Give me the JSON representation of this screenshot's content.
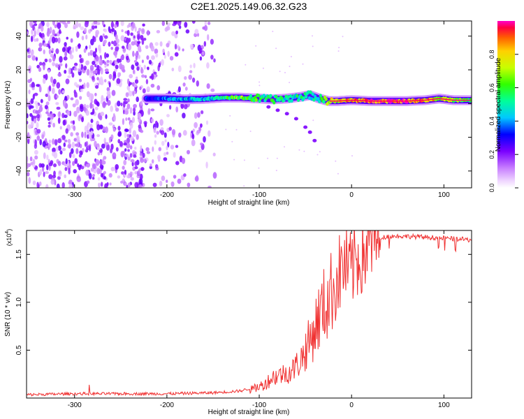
{
  "title": "C2E1.2025.149.06.32.G23",
  "chart_data": [
    {
      "type": "heatmap",
      "name": "spectrogram",
      "xlabel": "Height of straight line (km)",
      "ylabel": "Frequency (Hz)",
      "xlim": [
        -352,
        130
      ],
      "ylim": [
        -50,
        49
      ],
      "xticks": [
        -300,
        -200,
        -100,
        0,
        100
      ],
      "yticks": [
        -40,
        -20,
        0,
        20,
        40
      ],
      "colorbar": {
        "label": "Normalized spectral amplitude",
        "range": [
          0,
          1
        ],
        "ticks": [
          "0.0",
          "0.2",
          "0.4",
          "0.6",
          "0.8"
        ],
        "tick_values": [
          0.0,
          0.2,
          0.4,
          0.6,
          0.8
        ]
      },
      "ridge": {
        "x": [
          -222,
          -200,
          -180,
          -160,
          -140,
          -120,
          -100,
          -85,
          -70,
          -55,
          -45,
          -35,
          -25,
          -15,
          0,
          20,
          40,
          60,
          80,
          95,
          110,
          130
        ],
        "freq": [
          3,
          3,
          2.5,
          2.8,
          3.5,
          3.5,
          3,
          2.5,
          3,
          4,
          5,
          3,
          1.5,
          1.5,
          2,
          1.5,
          1.5,
          1.5,
          2,
          3,
          2,
          2
        ],
        "amp": [
          0.35,
          0.4,
          0.45,
          0.45,
          0.55,
          0.7,
          0.6,
          0.6,
          0.5,
          0.55,
          0.5,
          0.5,
          0.85,
          0.8,
          0.9,
          0.95,
          1.0,
          0.98,
          0.9,
          0.8,
          0.7,
          0.6
        ]
      },
      "secondary_trace": {
        "x": [
          -90,
          -80,
          -70,
          -60,
          -50,
          -45,
          -40
        ],
        "freq": [
          -2,
          -4,
          -6,
          -9,
          -14,
          -17,
          -22
        ]
      },
      "noise_region": {
        "x_start": -352,
        "x_end": -148,
        "freq_min": -50,
        "freq_max": 49
      }
    },
    {
      "type": "line",
      "name": "snr",
      "xlabel": "Height of straight line (km)",
      "ylabel": "SNR (10 * v/v)",
      "ylabel_scale": "(x10",
      "ylabel_scale_exp": "4",
      "ylabel_scale_close": ")",
      "xlim": [
        -352,
        130
      ],
      "ylim": [
        0,
        1.75
      ],
      "xticks": [
        -300,
        -200,
        -100,
        0,
        100
      ],
      "yticks": [
        0.5,
        1.0,
        1.5
      ],
      "ytick_labels": [
        "0.5",
        "1.0",
        "1.5"
      ],
      "series": [
        {
          "name": "SNR",
          "color": "#f03030",
          "x": [
            -352,
            -300,
            -250,
            -200,
            -150,
            -120,
            -105,
            -95,
            -85,
            -75,
            -65,
            -55,
            -45,
            -35,
            -25,
            -15,
            -8,
            -2,
            5,
            12,
            20,
            30,
            40,
            60,
            80,
            100,
            115,
            130
          ],
          "y": [
            0.02,
            0.03,
            0.03,
            0.03,
            0.04,
            0.06,
            0.1,
            0.14,
            0.22,
            0.25,
            0.28,
            0.4,
            0.6,
            0.85,
            1.05,
            1.25,
            1.4,
            1.3,
            1.45,
            1.5,
            1.6,
            1.67,
            1.69,
            1.69,
            1.68,
            1.67,
            1.66,
            1.65
          ]
        }
      ]
    }
  ],
  "colors": {
    "axis": "#000000",
    "line": "#f03030",
    "grid": "#cccccc"
  }
}
